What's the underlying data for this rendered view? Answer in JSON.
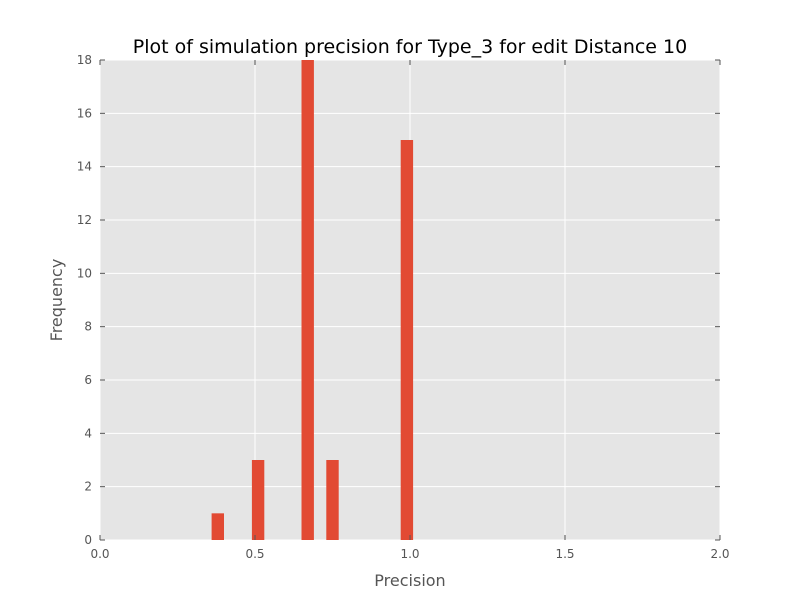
{
  "chart_data": {
    "type": "bar",
    "title": "Plot of simulation precision for Type_3 for edit Distance 10",
    "xlabel": "Precision",
    "ylabel": "Frequency",
    "xlim": [
      0.0,
      2.0
    ],
    "ylim": [
      0,
      18
    ],
    "xticks": [
      "0.0",
      "0.5",
      "1.0",
      "1.5",
      "2.0"
    ],
    "yticks": [
      "0",
      "2",
      "4",
      "6",
      "8",
      "10",
      "12",
      "14",
      "16",
      "18"
    ],
    "grid": true,
    "bar_width": 0.04,
    "bars": [
      {
        "x": 0.38,
        "value": 1
      },
      {
        "x": 0.51,
        "value": 3
      },
      {
        "x": 0.67,
        "value": 18
      },
      {
        "x": 0.75,
        "value": 3
      },
      {
        "x": 0.99,
        "value": 15
      }
    ],
    "colors": {
      "bar": "#e24a33",
      "background": "#e5e5e5",
      "grid": "#ffffff",
      "text": "#555555",
      "title": "#000000"
    }
  }
}
